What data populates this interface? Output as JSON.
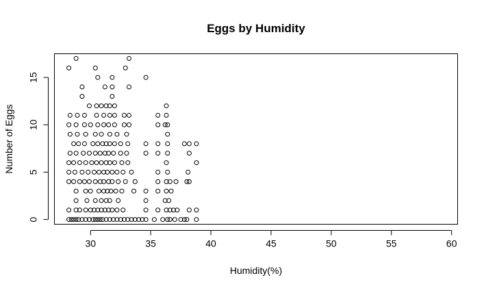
{
  "chart_data": {
    "type": "scatter",
    "title": "Eggs by Humidity",
    "xlabel": "Humidity(%)",
    "ylabel": "Number of Eggs",
    "xlim": [
      27,
      60.5
    ],
    "ylim": [
      -0.5,
      17.5
    ],
    "xticks": [
      30,
      35,
      40,
      45,
      50,
      55,
      60
    ],
    "yticks": [
      0,
      5,
      10,
      15
    ],
    "marker": "open-circle",
    "grid": false,
    "legend": "none",
    "colors": {
      "marker": "#000000",
      "axis": "#000000",
      "background": "#ffffff"
    },
    "points": [
      [
        28.2,
        0
      ],
      [
        28.4,
        0
      ],
      [
        28.6,
        0
      ],
      [
        28.8,
        0
      ],
      [
        29.0,
        0
      ],
      [
        29.3,
        0
      ],
      [
        29.6,
        0
      ],
      [
        29.9,
        0
      ],
      [
        30.2,
        0
      ],
      [
        30.4,
        0
      ],
      [
        30.6,
        0
      ],
      [
        30.8,
        0
      ],
      [
        31.0,
        0
      ],
      [
        31.3,
        0
      ],
      [
        31.6,
        0
      ],
      [
        31.9,
        0
      ],
      [
        32.2,
        0
      ],
      [
        32.5,
        0
      ],
      [
        32.8,
        0
      ],
      [
        33.1,
        0
      ],
      [
        33.4,
        0
      ],
      [
        33.7,
        0
      ],
      [
        34.0,
        0
      ],
      [
        34.3,
        0
      ],
      [
        34.6,
        0
      ],
      [
        35.3,
        0
      ],
      [
        36.0,
        0
      ],
      [
        36.4,
        0
      ],
      [
        36.6,
        0
      ],
      [
        37.0,
        0
      ],
      [
        37.5,
        0
      ],
      [
        37.8,
        0
      ],
      [
        38.0,
        0
      ],
      [
        38.8,
        0
      ],
      [
        28.2,
        1
      ],
      [
        28.8,
        1
      ],
      [
        29.1,
        1
      ],
      [
        29.6,
        1
      ],
      [
        30.0,
        1
      ],
      [
        30.3,
        1
      ],
      [
        30.6,
        1
      ],
      [
        30.9,
        1
      ],
      [
        31.2,
        1
      ],
      [
        31.5,
        1
      ],
      [
        31.8,
        1
      ],
      [
        32.2,
        1
      ],
      [
        32.7,
        1
      ],
      [
        34.6,
        1
      ],
      [
        35.6,
        1
      ],
      [
        36.3,
        1
      ],
      [
        36.6,
        1
      ],
      [
        36.9,
        1
      ],
      [
        37.2,
        1
      ],
      [
        38.2,
        1
      ],
      [
        38.8,
        1
      ],
      [
        28.8,
        2
      ],
      [
        29.7,
        2
      ],
      [
        30.4,
        2
      ],
      [
        30.9,
        2
      ],
      [
        31.3,
        2
      ],
      [
        31.6,
        2
      ],
      [
        32.3,
        2
      ],
      [
        34.6,
        2
      ],
      [
        36.2,
        2
      ],
      [
        36.5,
        2
      ],
      [
        28.8,
        3
      ],
      [
        29.6,
        3
      ],
      [
        30.0,
        3
      ],
      [
        30.7,
        3
      ],
      [
        31.1,
        3
      ],
      [
        31.4,
        3
      ],
      [
        31.7,
        3
      ],
      [
        32.1,
        3
      ],
      [
        32.6,
        3
      ],
      [
        33.6,
        3
      ],
      [
        34.6,
        3
      ],
      [
        35.6,
        3
      ],
      [
        36.3,
        3
      ],
      [
        36.7,
        3
      ],
      [
        28.2,
        4
      ],
      [
        28.6,
        4
      ],
      [
        29.1,
        4
      ],
      [
        29.5,
        4
      ],
      [
        29.9,
        4
      ],
      [
        30.4,
        4
      ],
      [
        30.8,
        4
      ],
      [
        31.1,
        4
      ],
      [
        31.5,
        4
      ],
      [
        31.8,
        4
      ],
      [
        32.3,
        4
      ],
      [
        32.9,
        4
      ],
      [
        33.7,
        4
      ],
      [
        35.6,
        4
      ],
      [
        36.3,
        4
      ],
      [
        36.6,
        4
      ],
      [
        37.1,
        4
      ],
      [
        38.0,
        4
      ],
      [
        38.2,
        4
      ],
      [
        28.2,
        5
      ],
      [
        28.7,
        5
      ],
      [
        29.3,
        5
      ],
      [
        29.8,
        5
      ],
      [
        30.3,
        5
      ],
      [
        30.7,
        5
      ],
      [
        31.1,
        5
      ],
      [
        31.4,
        5
      ],
      [
        31.8,
        5
      ],
      [
        32.2,
        5
      ],
      [
        32.7,
        5
      ],
      [
        33.4,
        5
      ],
      [
        35.6,
        5
      ],
      [
        36.4,
        5
      ],
      [
        38.1,
        5
      ],
      [
        28.2,
        6
      ],
      [
        28.6,
        6
      ],
      [
        29.1,
        6
      ],
      [
        29.6,
        6
      ],
      [
        30.1,
        6
      ],
      [
        30.5,
        6
      ],
      [
        30.9,
        6
      ],
      [
        31.3,
        6
      ],
      [
        31.6,
        6
      ],
      [
        32.0,
        6
      ],
      [
        32.6,
        6
      ],
      [
        33.1,
        6
      ],
      [
        36.3,
        6
      ],
      [
        38.8,
        6
      ],
      [
        28.3,
        7
      ],
      [
        28.8,
        7
      ],
      [
        29.4,
        7
      ],
      [
        29.9,
        7
      ],
      [
        30.4,
        7
      ],
      [
        30.8,
        7
      ],
      [
        31.2,
        7
      ],
      [
        31.5,
        7
      ],
      [
        31.9,
        7
      ],
      [
        32.5,
        7
      ],
      [
        33.0,
        7
      ],
      [
        34.6,
        7
      ],
      [
        35.6,
        7
      ],
      [
        36.4,
        7
      ],
      [
        38.2,
        7
      ],
      [
        28.6,
        8
      ],
      [
        29.0,
        8
      ],
      [
        29.5,
        8
      ],
      [
        30.2,
        8
      ],
      [
        30.6,
        8
      ],
      [
        31.0,
        8
      ],
      [
        31.3,
        8
      ],
      [
        31.6,
        8
      ],
      [
        32.0,
        8
      ],
      [
        32.5,
        8
      ],
      [
        33.1,
        8
      ],
      [
        34.6,
        8
      ],
      [
        35.6,
        8
      ],
      [
        36.4,
        8
      ],
      [
        37.8,
        8
      ],
      [
        38.2,
        8
      ],
      [
        38.8,
        8
      ],
      [
        28.3,
        9
      ],
      [
        28.9,
        9
      ],
      [
        29.6,
        9
      ],
      [
        30.4,
        9
      ],
      [
        30.9,
        9
      ],
      [
        31.6,
        9
      ],
      [
        32.2,
        9
      ],
      [
        33.0,
        9
      ],
      [
        36.4,
        9
      ],
      [
        28.2,
        10
      ],
      [
        28.8,
        10
      ],
      [
        29.5,
        10
      ],
      [
        30.0,
        10
      ],
      [
        30.6,
        10
      ],
      [
        31.1,
        10
      ],
      [
        31.5,
        10
      ],
      [
        32.0,
        10
      ],
      [
        32.8,
        10
      ],
      [
        33.2,
        10
      ],
      [
        35.6,
        10
      ],
      [
        36.2,
        10
      ],
      [
        36.4,
        10
      ],
      [
        28.3,
        11
      ],
      [
        28.9,
        11
      ],
      [
        29.5,
        11
      ],
      [
        30.5,
        11
      ],
      [
        31.1,
        11
      ],
      [
        31.6,
        11
      ],
      [
        32.0,
        11
      ],
      [
        32.8,
        11
      ],
      [
        33.2,
        11
      ],
      [
        35.6,
        11
      ],
      [
        36.3,
        11
      ],
      [
        29.9,
        12
      ],
      [
        30.5,
        12
      ],
      [
        30.9,
        12
      ],
      [
        31.3,
        12
      ],
      [
        31.6,
        12
      ],
      [
        32.0,
        12
      ],
      [
        36.3,
        12
      ],
      [
        29.3,
        13
      ],
      [
        31.8,
        13
      ],
      [
        29.3,
        14
      ],
      [
        31.2,
        14
      ],
      [
        31.8,
        14
      ],
      [
        33.2,
        14
      ],
      [
        30.6,
        15
      ],
      [
        31.8,
        15
      ],
      [
        34.6,
        15
      ],
      [
        28.2,
        16
      ],
      [
        30.4,
        16
      ],
      [
        32.9,
        16
      ],
      [
        28.8,
        17
      ],
      [
        33.2,
        17
      ]
    ]
  }
}
